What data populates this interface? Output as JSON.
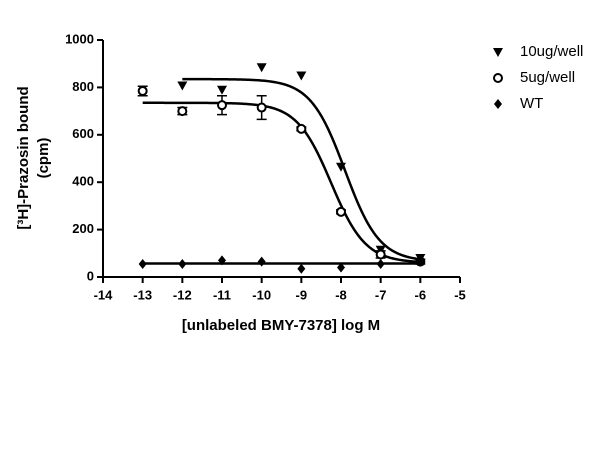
{
  "chart_data": {
    "type": "scatter",
    "xlabel": "[unlabeled BMY-7378] log M",
    "ylabel": [
      "[³H]-Prazosin bound",
      "(cpm)"
    ],
    "xlim": [
      -14,
      -5
    ],
    "xticks": [
      -14,
      -13,
      -12,
      -11,
      -10,
      -9,
      -8,
      -7,
      -6,
      -5
    ],
    "ylim": [
      0,
      1000
    ],
    "yticks": [
      0,
      200,
      400,
      600,
      800,
      1000
    ],
    "legend": "right-top",
    "series": [
      {
        "name": "10ug/well",
        "marker": "triangle-down",
        "color": "#000000",
        "x": [
          -12,
          -11,
          -10,
          -9,
          -8,
          -7,
          -6
        ],
        "values": [
          808,
          790,
          885,
          850,
          465,
          115,
          80
        ],
        "fit": {
          "top": 835,
          "bottom": 65,
          "log_ec50": -7.9
        }
      },
      {
        "name": "5ug/well",
        "marker": "circle-open",
        "color": "#000000",
        "x": [
          -13,
          -12,
          -11,
          -10,
          -9,
          -8,
          -7,
          -6
        ],
        "values": [
          785,
          700,
          725,
          715,
          625,
          275,
          95,
          65
        ],
        "errors": [
          20,
          15,
          40,
          50,
          8,
          8,
          15,
          10
        ],
        "fit": {
          "top": 735,
          "bottom": 60,
          "log_ec50": -8.25
        }
      },
      {
        "name": "WT",
        "marker": "diamond",
        "color": "#000000",
        "x": [
          -13,
          -12,
          -11,
          -10,
          -9,
          -8,
          -7,
          -6
        ],
        "values": [
          55,
          55,
          70,
          65,
          35,
          40,
          55,
          65
        ],
        "fit": {
          "top": 57,
          "bottom": 57
        }
      }
    ]
  }
}
